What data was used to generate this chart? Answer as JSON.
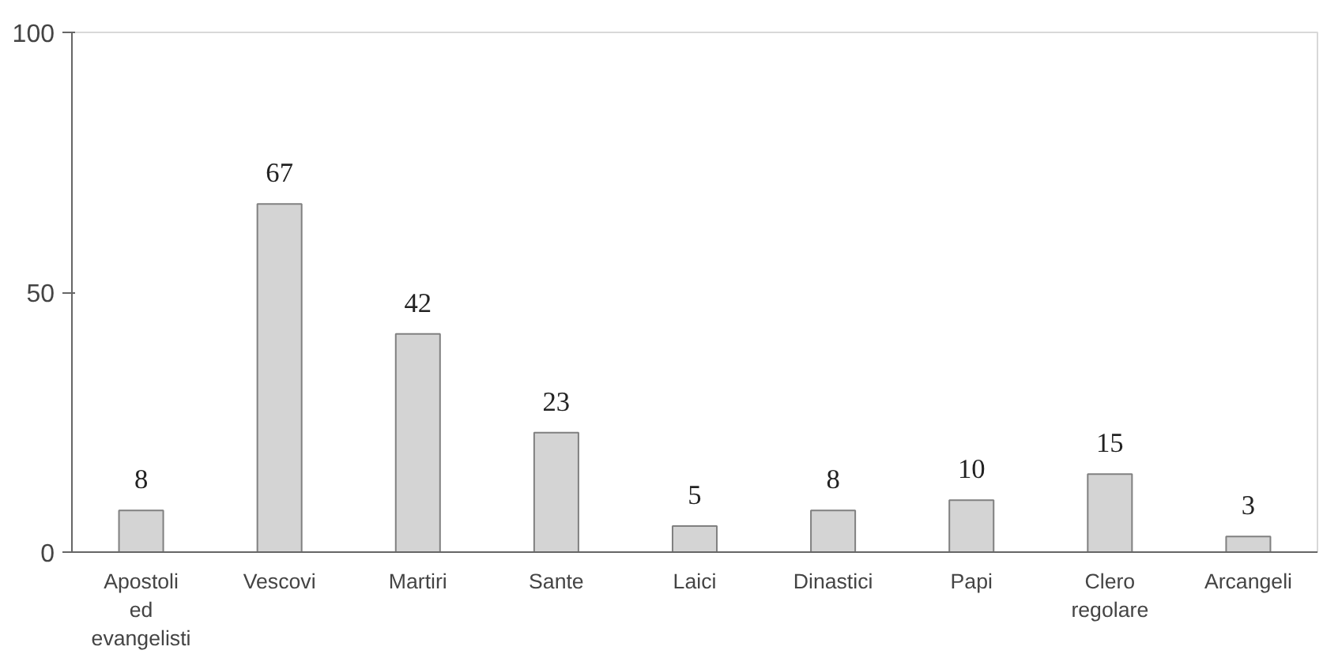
{
  "chart_data": {
    "type": "bar",
    "categories": [
      "Apostoli ed evangelisti",
      "Vescovi",
      "Martiri",
      "Sante",
      "Laici",
      "Dinastici",
      "Papi",
      "Clero regolare",
      "Arcangeli"
    ],
    "values": [
      8,
      67,
      42,
      23,
      5,
      8,
      10,
      15,
      3
    ],
    "color": "#d4d4d4",
    "ylim": [
      0,
      100
    ],
    "yticks": [
      0,
      50,
      100
    ],
    "grid": false,
    "data_labels": true
  }
}
